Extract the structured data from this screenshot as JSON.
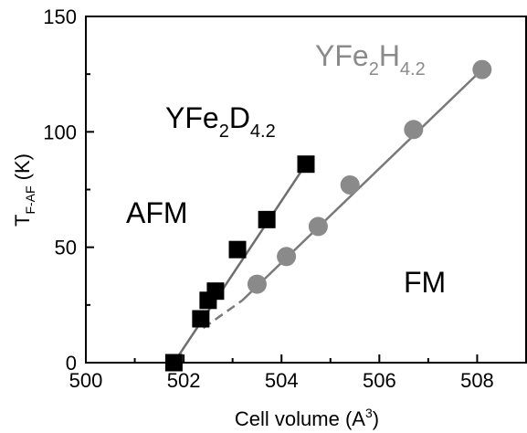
{
  "chart_data": {
    "type": "scatter",
    "xlabel_base": "Cell volume (A",
    "xlabel_sup": "3",
    "xlabel_tail": ")",
    "ylabel_base": "T",
    "ylabel_sub": "F-AF",
    "ylabel_tail": " (K)",
    "xlim": [
      500,
      509
    ],
    "ylim": [
      0,
      150
    ],
    "x_ticks": [
      500,
      502,
      504,
      506,
      508
    ],
    "y_ticks": [
      0,
      50,
      100,
      150
    ],
    "annotations": {
      "afm": "AFM",
      "fm": "FM",
      "deut_base": "YFe",
      "deut_sub1": "2",
      "deut_mid": "D",
      "deut_sub2": "4.2",
      "hyd_base": "YFe",
      "hyd_sub1": "2",
      "hyd_mid": "H",
      "hyd_sub2": "4.2"
    },
    "series": [
      {
        "name": "YFe2D4.2",
        "marker": "square",
        "color": "#000000",
        "line_color": "#6e6e6e",
        "x": [
          501.8,
          502.35,
          502.5,
          502.65,
          503.1,
          503.7,
          504.5
        ],
        "y": [
          0,
          19,
          27,
          31,
          49,
          62,
          86
        ],
        "fit_line": [
          [
            501.8,
            0
          ],
          [
            504.5,
            86
          ]
        ]
      },
      {
        "name": "YFe2H4.2",
        "marker": "circle",
        "color": "#8a8a8a",
        "line_color": "#7a7a7a",
        "x": [
          503.5,
          504.1,
          504.75,
          505.4,
          506.7,
          508.1
        ],
        "y": [
          34,
          46,
          59,
          77,
          101,
          127
        ],
        "fit_line": [
          [
            503.2,
            27
          ],
          [
            508.1,
            127
          ]
        ],
        "dashed_extrapolation": [
          [
            502.4,
            15
          ],
          [
            503.2,
            27
          ]
        ]
      }
    ],
    "colors": {
      "axis": "#000000",
      "text_dark": "#000000",
      "text_gray": "#8a8a8a"
    }
  }
}
